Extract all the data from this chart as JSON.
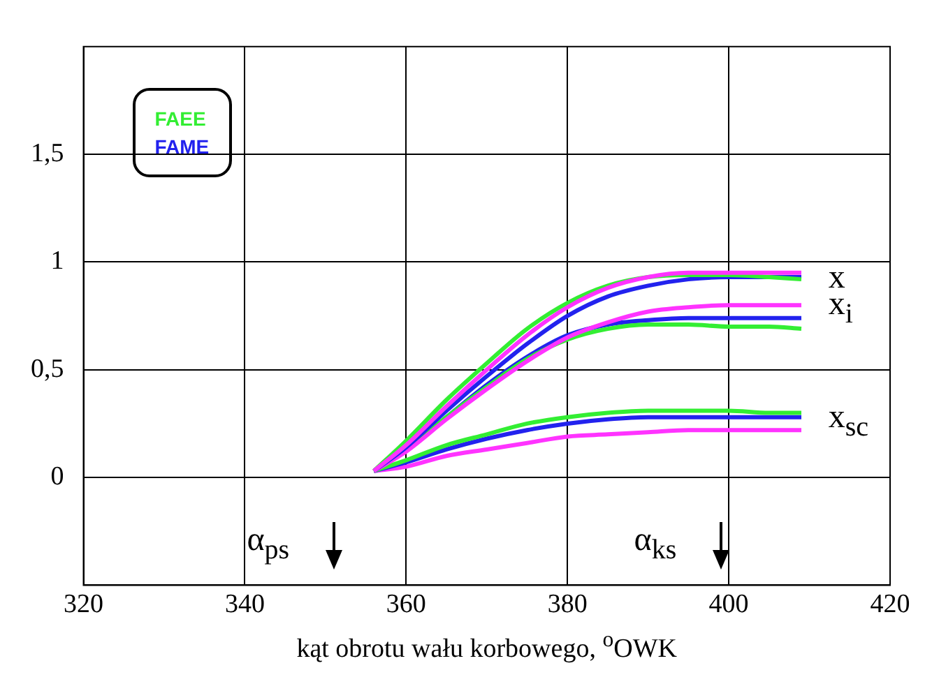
{
  "chart_data": {
    "type": "line",
    "xlabel": "kąt obrotu wału korbowego, $^{o}$OWK",
    "x": [
      356,
      360,
      365,
      370,
      375,
      380,
      385,
      390,
      395,
      400,
      405,
      409
    ],
    "series": [
      {
        "color": "#ff33ff",
        "values": [
          0.03,
          0.15,
          0.33,
          0.5,
          0.66,
          0.79,
          0.88,
          0.93,
          0.95,
          0.95,
          0.95,
          0.95
        ]
      },
      {
        "name": "FAEE",
        "color": "#33ee33",
        "values": [
          0.03,
          0.17,
          0.36,
          0.53,
          0.69,
          0.81,
          0.89,
          0.93,
          0.94,
          0.94,
          0.93,
          0.92
        ]
      },
      {
        "name": "FAME",
        "color": "#2222ee",
        "values": [
          0.03,
          0.14,
          0.31,
          0.47,
          0.62,
          0.75,
          0.84,
          0.89,
          0.92,
          0.93,
          0.93,
          0.93
        ]
      },
      {
        "color": "#ff33ff",
        "values": [
          0.03,
          0.12,
          0.27,
          0.41,
          0.54,
          0.65,
          0.72,
          0.77,
          0.79,
          0.8,
          0.8,
          0.8
        ]
      },
      {
        "color": "#33ee33",
        "values": [
          0.03,
          0.13,
          0.28,
          0.42,
          0.55,
          0.64,
          0.69,
          0.71,
          0.71,
          0.7,
          0.7,
          0.69
        ]
      },
      {
        "color": "#2222ee",
        "values": [
          0.03,
          0.13,
          0.28,
          0.43,
          0.56,
          0.66,
          0.71,
          0.73,
          0.74,
          0.74,
          0.74,
          0.74
        ]
      },
      {
        "color": "#33ee33",
        "values": [
          0.03,
          0.08,
          0.15,
          0.2,
          0.25,
          0.28,
          0.3,
          0.31,
          0.31,
          0.31,
          0.3,
          0.3
        ]
      },
      {
        "color": "#2222ee",
        "values": [
          0.03,
          0.07,
          0.13,
          0.18,
          0.22,
          0.25,
          0.27,
          0.28,
          0.28,
          0.28,
          0.28,
          0.28
        ]
      },
      {
        "color": "#ff33ff",
        "values": [
          0.03,
          0.05,
          0.1,
          0.13,
          0.16,
          0.19,
          0.2,
          0.21,
          0.22,
          0.22,
          0.22,
          0.22
        ]
      }
    ],
    "xlim": [
      320,
      420
    ],
    "xticks": [
      320,
      340,
      360,
      380,
      400,
      420
    ],
    "ylim": [
      -0.5,
      2
    ],
    "yticks": [
      {
        "value": -0.5,
        "label": null
      },
      0,
      {
        "value": 0.5,
        "label": "0,5"
      },
      1,
      {
        "value": 1.5,
        "label": "1,5"
      }
    ],
    "grid": true,
    "legend": "top left",
    "marker": "none",
    "line_style": "solid",
    "annotations": [
      "x",
      "x$_{i}$",
      "x$_{sc}$",
      "α$_{ps}$",
      "α$_{ks}$"
    ]
  }
}
